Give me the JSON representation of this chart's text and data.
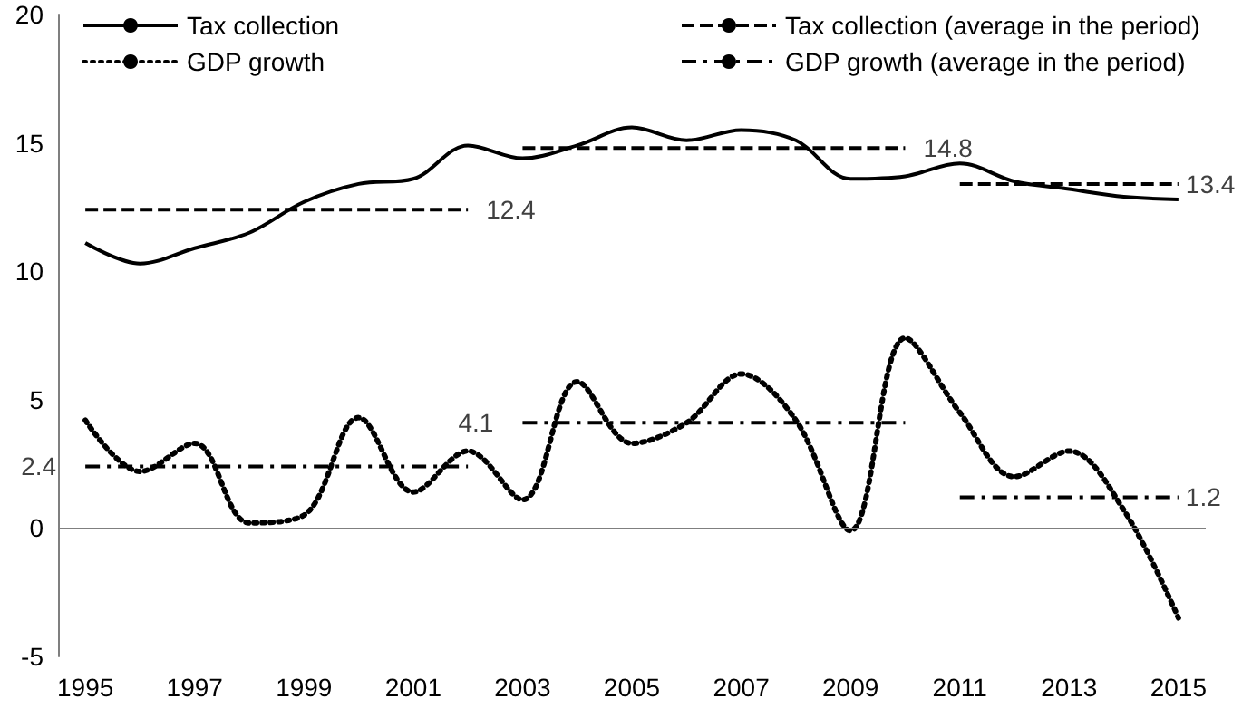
{
  "chart_data": {
    "type": "line",
    "x": [
      1995,
      1996,
      1997,
      1998,
      1999,
      2000,
      2001,
      2002,
      2003,
      2004,
      2005,
      2006,
      2007,
      2008,
      2009,
      2010,
      2011,
      2012,
      2013,
      2014,
      2015
    ],
    "series": [
      {
        "name": "Tax collection",
        "color": "#000000",
        "line_style": "solid",
        "values": [
          11.1,
          10.3,
          10.9,
          11.5,
          12.7,
          13.4,
          13.6,
          14.9,
          14.4,
          14.9,
          15.6,
          15.1,
          15.5,
          15.1,
          13.6,
          13.7,
          14.2,
          13.5,
          13.2,
          12.9,
          12.8
        ]
      },
      {
        "name": "Tax collection (average in the period)",
        "color": "#000000",
        "line_style": "dashed",
        "x": [
          1995,
          2002,
          null,
          2003,
          2010,
          null,
          2011,
          2015
        ],
        "values": [
          12.4,
          12.4,
          null,
          14.8,
          14.8,
          null,
          13.4,
          13.4
        ],
        "value_labels": [
          null,
          "12.4",
          null,
          null,
          "14.8",
          null,
          null,
          "13.4"
        ]
      },
      {
        "name": "GDP growth",
        "color": "#000000",
        "line_style": "dotted",
        "values": [
          4.2,
          2.2,
          3.3,
          0.2,
          0.5,
          4.3,
          1.4,
          3.0,
          1.1,
          5.7,
          3.3,
          4.1,
          6.0,
          4.2,
          -0.1,
          7.4,
          4.5,
          2.0,
          3.0,
          0.7,
          -3.5
        ]
      },
      {
        "name": "GDP growth (average in the period)",
        "color": "#000000",
        "line_style": "dashdot",
        "x": [
          1995,
          2002,
          null,
          2003,
          2010,
          null,
          2011,
          2015
        ],
        "values": [
          2.4,
          2.4,
          null,
          4.1,
          4.1,
          null,
          1.2,
          1.2
        ],
        "value_labels": [
          "2.4",
          null,
          null,
          "4.1",
          null,
          null,
          null,
          "1.2"
        ]
      }
    ],
    "xlim": [
      1994.5,
      2015.5
    ],
    "xticks": [
      1995,
      1997,
      1999,
      2001,
      2003,
      2005,
      2007,
      2009,
      2011,
      2013,
      2015
    ],
    "ylim": [
      -5,
      20
    ],
    "yticks": [
      -5,
      0,
      5,
      10,
      15,
      20
    ],
    "ref_lines": [
      {
        "axis": "y",
        "value": 0,
        "color": "#7f7f7f"
      }
    ],
    "grid": false,
    "legend": "top",
    "marker": "none"
  }
}
